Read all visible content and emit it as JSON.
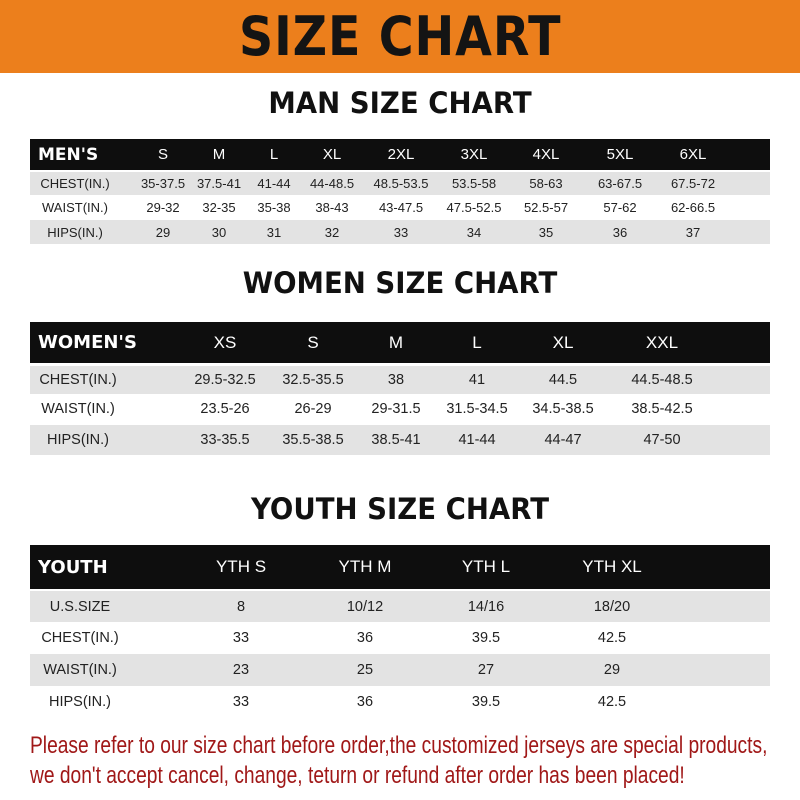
{
  "banner_title": "SIZE CHART",
  "men": {
    "title": "MAN SIZE CHART",
    "header": [
      "MEN'S",
      "S",
      "M",
      "L",
      "XL",
      "2XL",
      "3XL",
      "4XL",
      "5XL",
      "6XL"
    ],
    "rows": [
      [
        "CHEST(IN.)",
        "35-37.5",
        "37.5-41",
        "41-44",
        "44-48.5",
        "48.5-53.5",
        "53.5-58",
        "58-63",
        "63-67.5",
        "67.5-72"
      ],
      [
        "WAIST(IN.)",
        "29-32",
        "32-35",
        "35-38",
        "38-43",
        "43-47.5",
        "47.5-52.5",
        "52.5-57",
        "57-62",
        "62-66.5"
      ],
      [
        "HIPS(IN.)",
        "29",
        "30",
        "31",
        "32",
        "33",
        "34",
        "35",
        "36",
        "37"
      ]
    ]
  },
  "women": {
    "title": "WOMEN SIZE CHART",
    "header": [
      "WOMEN'S",
      "XS",
      "S",
      "M",
      "L",
      "XL",
      "XXL"
    ],
    "rows": [
      [
        "CHEST(IN.)",
        "29.5-32.5",
        "32.5-35.5",
        "38",
        "41",
        "44.5",
        "44.5-48.5"
      ],
      [
        "WAIST(IN.)",
        "23.5-26",
        "26-29",
        "29-31.5",
        "31.5-34.5",
        "34.5-38.5",
        "38.5-42.5"
      ],
      [
        "HIPS(IN.)",
        "33-35.5",
        "35.5-38.5",
        "38.5-41",
        "41-44",
        "44-47",
        "47-50"
      ]
    ]
  },
  "youth": {
    "title": "YOUTH SIZE CHART",
    "header": [
      "YOUTH",
      "YTH S",
      "YTH M",
      "YTH L",
      "YTH XL"
    ],
    "rows": [
      [
        "U.S.SIZE",
        "8",
        "10/12",
        "14/16",
        "18/20"
      ],
      [
        "CHEST(IN.)",
        "33",
        "36",
        "39.5",
        "42.5"
      ],
      [
        "WAIST(IN.)",
        "23",
        "25",
        "27",
        "29"
      ],
      [
        "HIPS(IN.)",
        "33",
        "36",
        "39.5",
        "42.5"
      ]
    ]
  },
  "footer": {
    "line1": "Please refer to our size chart before order,the customized jerseys are special products,",
    "line2": "we don't accept cancel, change, teturn or refund after order has been placed!"
  },
  "colors": {
    "banner": "#ec7f1c",
    "header_row": "#0e0e0e",
    "alt_row": "#e3e3e3",
    "footer_text": "#a01818"
  }
}
